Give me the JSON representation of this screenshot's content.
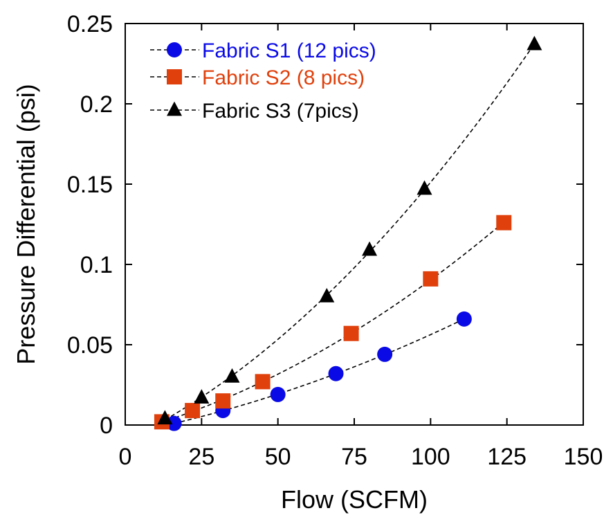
{
  "chart_data": {
    "type": "scatter",
    "title": "",
    "xlabel": "Flow (SCFM)",
    "ylabel": "Pressure Differential (psi)",
    "xlim": [
      0,
      150
    ],
    "ylim": [
      0,
      0.25
    ],
    "x_ticks": [
      0,
      25,
      50,
      75,
      100,
      125,
      150
    ],
    "x_tick_labels": [
      "0",
      "25",
      "50",
      "75",
      "100",
      "125",
      "150"
    ],
    "y_ticks": [
      0,
      0.05,
      0.1,
      0.15,
      0.2,
      0.25
    ],
    "y_tick_labels": [
      "0",
      "0.05",
      "0.1",
      "0.15",
      "0.2",
      "0.25"
    ],
    "grid": false,
    "legend_position": "top-left",
    "series": [
      {
        "name": "Fabric S1 (12 pics)",
        "marker": "circle",
        "color": "#0a0ae6",
        "points": [
          [
            16,
            0.001
          ],
          [
            32,
            0.009
          ],
          [
            50,
            0.019
          ],
          [
            69,
            0.032
          ],
          [
            85,
            0.044
          ],
          [
            111,
            0.066
          ]
        ]
      },
      {
        "name": "Fabric S2 (8 pics)",
        "marker": "square",
        "color": "#e0400c",
        "points": [
          [
            12,
            0.002
          ],
          [
            22,
            0.009
          ],
          [
            32,
            0.015
          ],
          [
            45,
            0.027
          ],
          [
            74,
            0.057
          ],
          [
            100,
            0.091
          ],
          [
            124,
            0.126
          ]
        ]
      },
      {
        "name": "Fabric S3 (7pics)",
        "marker": "triangle",
        "color": "#000000",
        "points": [
          [
            13,
            0.004
          ],
          [
            25,
            0.017
          ],
          [
            35,
            0.03
          ],
          [
            66,
            0.08
          ],
          [
            80,
            0.109
          ],
          [
            98,
            0.147
          ],
          [
            134,
            0.237
          ]
        ]
      }
    ]
  }
}
